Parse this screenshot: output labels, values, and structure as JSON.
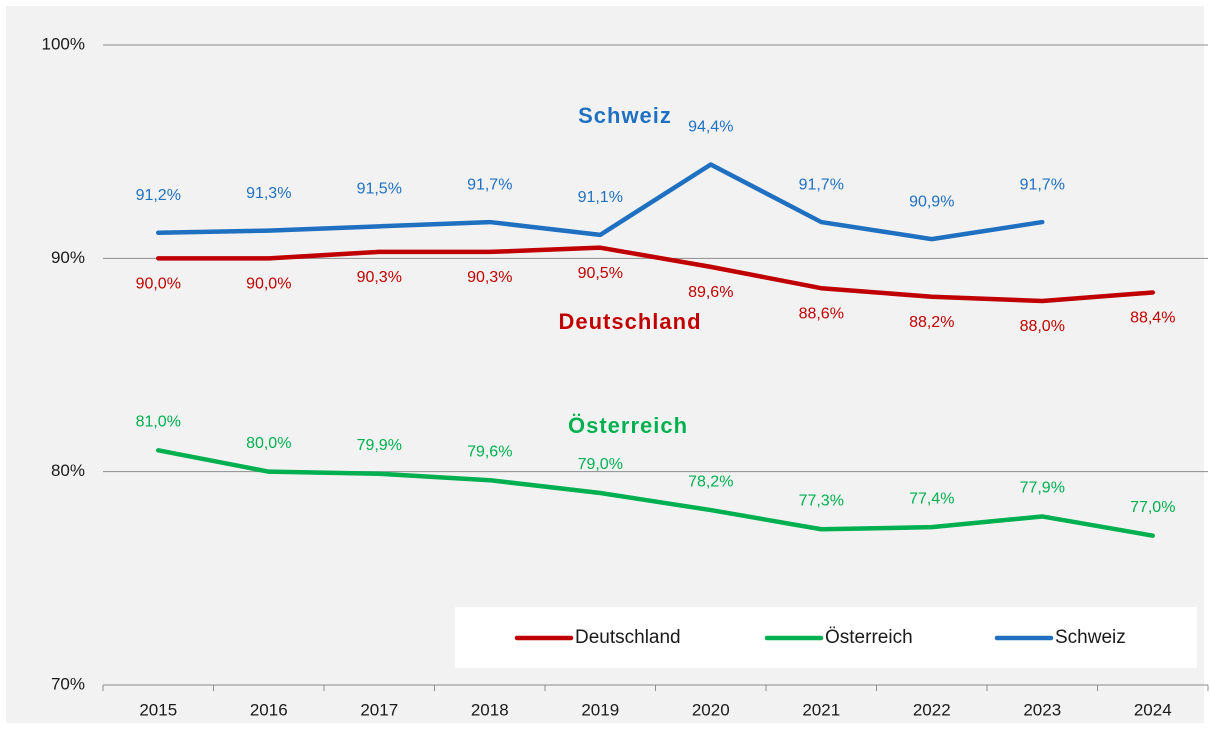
{
  "chart_data": {
    "type": "line",
    "categories": [
      "2015",
      "2016",
      "2017",
      "2018",
      "2019",
      "2020",
      "2021",
      "2022",
      "2023",
      "2024"
    ],
    "series": [
      {
        "name": "Deutschland",
        "color": "#c00000",
        "values": [
          90.0,
          90.0,
          90.3,
          90.3,
          90.5,
          89.6,
          88.6,
          88.2,
          88.0,
          88.4
        ],
        "value_labels": [
          "90,0%",
          "90,0%",
          "90,3%",
          "90,3%",
          "90,5%",
          "89,6%",
          "88,6%",
          "88,2%",
          "88,0%",
          "88,4%"
        ]
      },
      {
        "name": "Österreich",
        "color": "#00b050",
        "values": [
          81.0,
          80.0,
          79.9,
          79.6,
          79.0,
          78.2,
          77.3,
          77.4,
          77.9,
          77.0
        ],
        "value_labels": [
          "81,0%",
          "80,0%",
          "79,9%",
          "79,6%",
          "79,0%",
          "78,2%",
          "77,3%",
          "77,4%",
          "77,9%",
          "77,0%"
        ]
      },
      {
        "name": "Schweiz",
        "color": "#1f70c1",
        "values": [
          91.2,
          91.3,
          91.5,
          91.7,
          91.1,
          94.4,
          91.7,
          90.9,
          91.7,
          null
        ],
        "value_labels": [
          "91,2%",
          "91,3%",
          "91,5%",
          "91,7%",
          "91,1%",
          "94,4%",
          "91,7%",
          "90,9%",
          "91,7%",
          null
        ]
      }
    ],
    "annotations": [
      "Schweiz",
      "Deutschland",
      "Österreich"
    ],
    "ylim": [
      70,
      100
    ],
    "yticks": [
      {
        "value": 70,
        "label": "70%"
      },
      {
        "value": 80,
        "label": "80%"
      },
      {
        "value": 90,
        "label": "90%"
      },
      {
        "value": 100,
        "label": "100%"
      }
    ],
    "grid": true,
    "legend": "bottom-right"
  }
}
